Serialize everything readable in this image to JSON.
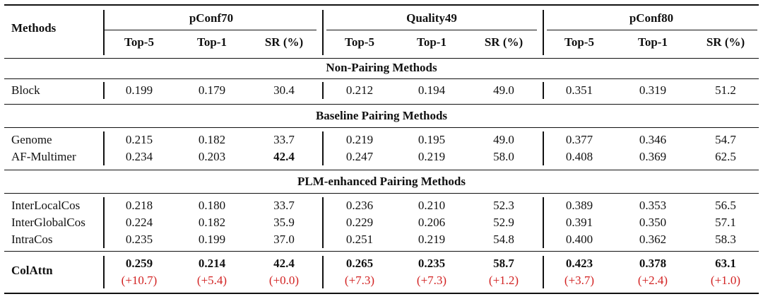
{
  "header": {
    "methods_label": "Methods",
    "groups": [
      "pConf70",
      "Quality49",
      "pConf80"
    ],
    "subcolumns": [
      "Top-5",
      "Top-1",
      "SR (%)"
    ]
  },
  "sections": [
    {
      "title": "Non-Pairing Methods",
      "rows": [
        {
          "method": "Block",
          "values": [
            "0.199",
            "0.179",
            "30.4",
            "0.212",
            "0.194",
            "49.0",
            "0.351",
            "0.319",
            "51.2"
          ],
          "bold": []
        }
      ]
    },
    {
      "title": "Baseline Pairing Methods",
      "rows": [
        {
          "method": "Genome",
          "values": [
            "0.215",
            "0.182",
            "33.7",
            "0.219",
            "0.195",
            "49.0",
            "0.377",
            "0.346",
            "54.7"
          ],
          "bold": []
        },
        {
          "method": "AF-Multimer",
          "values": [
            "0.234",
            "0.203",
            "42.4",
            "0.247",
            "0.219",
            "58.0",
            "0.408",
            "0.369",
            "62.5"
          ],
          "bold": [
            2
          ]
        }
      ]
    },
    {
      "title": "PLM-enhanced Pairing Methods",
      "rows": [
        {
          "method": "InterLocalCos",
          "values": [
            "0.218",
            "0.180",
            "33.7",
            "0.236",
            "0.210",
            "52.3",
            "0.389",
            "0.353",
            "56.5"
          ],
          "bold": []
        },
        {
          "method": "InterGlobalCos",
          "values": [
            "0.224",
            "0.182",
            "35.9",
            "0.229",
            "0.206",
            "52.9",
            "0.391",
            "0.350",
            "57.1"
          ],
          "bold": []
        },
        {
          "method": "IntraCos",
          "values": [
            "0.235",
            "0.199",
            "37.0",
            "0.251",
            "0.219",
            "54.8",
            "0.400",
            "0.362",
            "58.3"
          ],
          "bold": []
        }
      ]
    }
  ],
  "final_row": {
    "method": "ColAttn",
    "values": [
      "0.259",
      "0.214",
      "42.4",
      "0.265",
      "0.235",
      "58.7",
      "0.423",
      "0.378",
      "63.1"
    ],
    "deltas": [
      "(+10.7)",
      "(+5.4)",
      "(+0.0)",
      "(+7.3)",
      "(+7.3)",
      "(+1.2)",
      "(+3.7)",
      "(+2.4)",
      "(+1.0)"
    ]
  },
  "colors": {
    "delta": "#d22222",
    "text": "#111111"
  }
}
